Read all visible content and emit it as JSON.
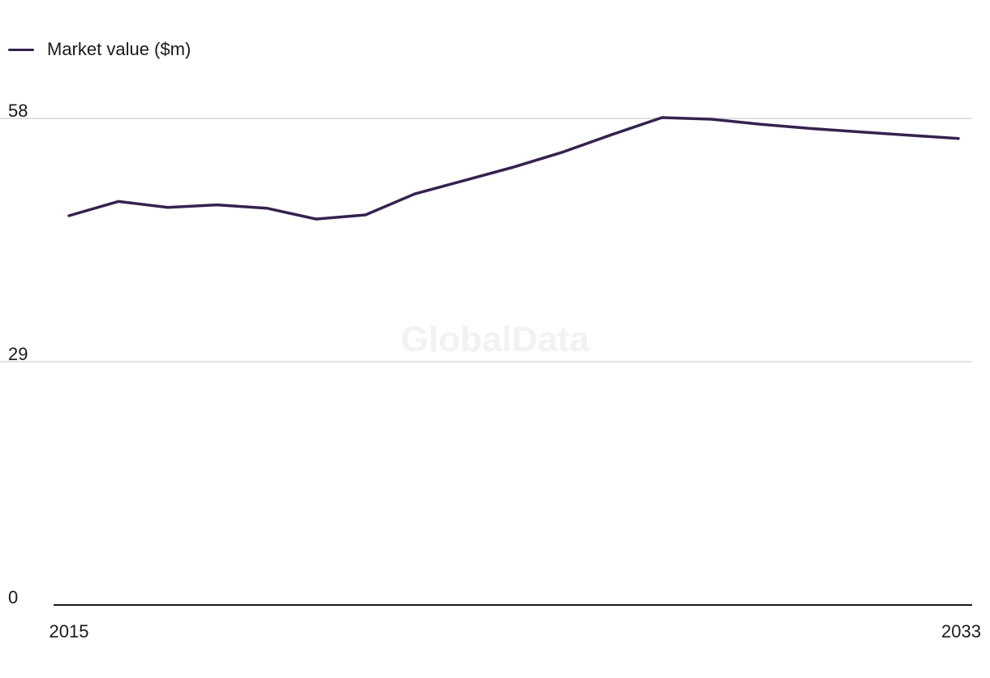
{
  "legend": {
    "label": "Market value ($m)"
  },
  "watermark": "GlobalData",
  "colors": {
    "series": "#35224f",
    "grid": "#d9d9d9",
    "axis": "#1a1a1a"
  },
  "chart_data": {
    "type": "line",
    "title": "",
    "xlabel": "",
    "ylabel": "",
    "x": [
      2015,
      2016,
      2017,
      2018,
      2019,
      2020,
      2021,
      2022,
      2023,
      2024,
      2025,
      2026,
      2027,
      2028,
      2029,
      2030,
      2031,
      2032,
      2033
    ],
    "series": [
      {
        "name": "Market value ($m)",
        "values": [
          46.4,
          48.1,
          47.4,
          47.7,
          47.3,
          46.0,
          46.5,
          49.0,
          50.6,
          52.2,
          54.0,
          56.1,
          58.1,
          57.9,
          57.3,
          56.8,
          56.4,
          56.0,
          55.6
        ]
      }
    ],
    "xlim": [
      2015,
      2033
    ],
    "ylim": [
      0,
      58
    ],
    "y_ticks": [
      0,
      29,
      58
    ],
    "x_tick_labels": [
      "2015",
      "2033"
    ],
    "grid": true,
    "legend_position": "top-left"
  }
}
